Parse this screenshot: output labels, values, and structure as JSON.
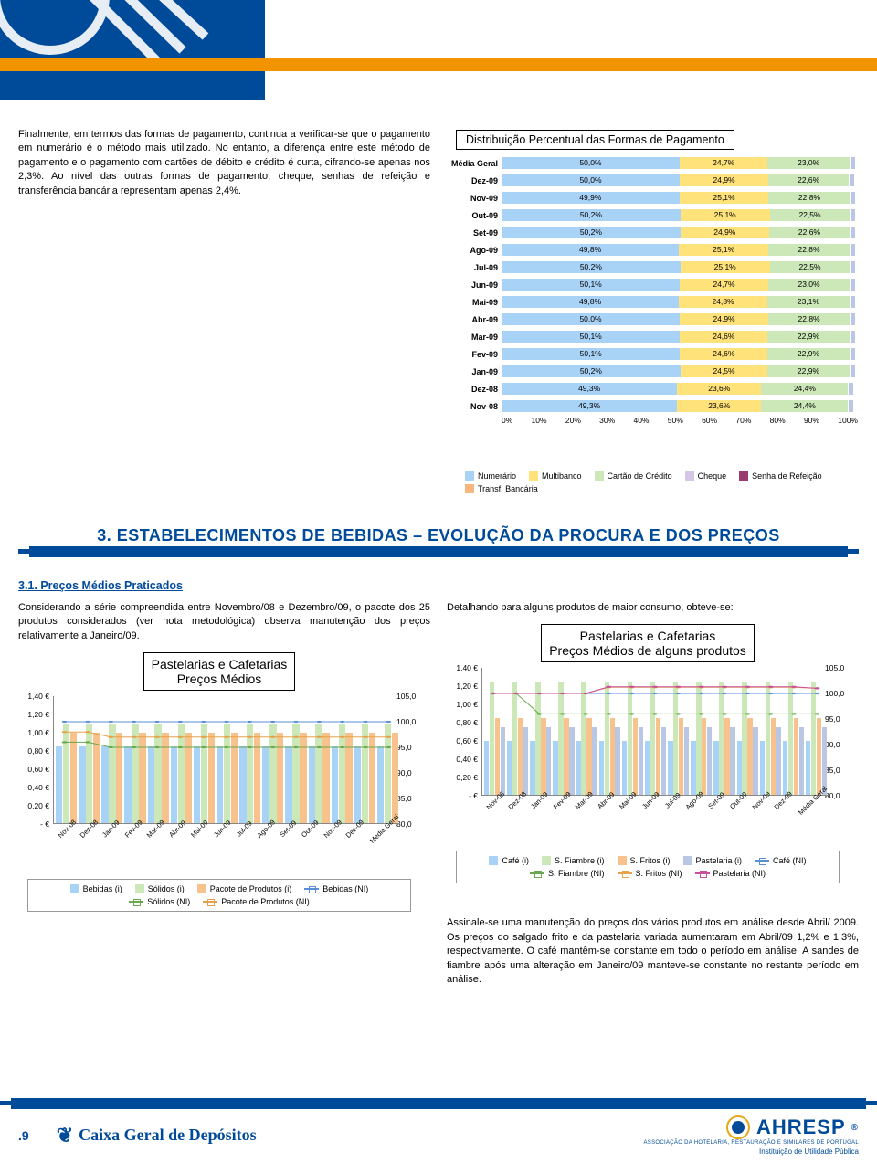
{
  "header": {
    "orange_color": "#f29400",
    "blue_color": "#004a9a"
  },
  "intro": {
    "p1": "Finalmente, em termos das formas de pagamento, continua a verificar-se que o pagamento em numerário é o método mais utilizado. No entanto, a diferença entre este método de pagamento e o pagamento com cartões de débito e crédito é curta, cifrando-se apenas nos 2,3%. Ao nível das outras formas de pagamento, cheque, senhas de refeição e transferência bancária representam apenas 2,4%."
  },
  "hbar_chart": {
    "title": "Distribuição Percentual das Formas de Pagamento",
    "xlim": [
      0,
      100
    ],
    "xticks": [
      "0%",
      "10%",
      "20%",
      "30%",
      "40%",
      "50%",
      "60%",
      "70%",
      "80%",
      "90%",
      "100%"
    ],
    "colors": {
      "c1": "#a9d2f7",
      "c2": "#ffe27a",
      "c3": "#cde8b8",
      "terminal": "#b9c7e4"
    },
    "rows": [
      {
        "label": "Média Geral",
        "v1": "50,0%",
        "v2": "24,7%",
        "v3": "23,0%",
        "n1": 50.0,
        "n2": 24.7,
        "n3": 23.0
      },
      {
        "label": "Dez-09",
        "v1": "50,0%",
        "v2": "24,9%",
        "v3": "22,6%",
        "n1": 50.0,
        "n2": 24.9,
        "n3": 22.6
      },
      {
        "label": "Nov-09",
        "v1": "49,9%",
        "v2": "25,1%",
        "v3": "22,8%",
        "n1": 49.9,
        "n2": 25.1,
        "n3": 22.8
      },
      {
        "label": "Out-09",
        "v1": "50,2%",
        "v2": "25,1%",
        "v3": "22,5%",
        "n1": 50.2,
        "n2": 25.1,
        "n3": 22.5
      },
      {
        "label": "Set-09",
        "v1": "50,2%",
        "v2": "24,9%",
        "v3": "22,6%",
        "n1": 50.2,
        "n2": 24.9,
        "n3": 22.6
      },
      {
        "label": "Ago-09",
        "v1": "49,8%",
        "v2": "25,1%",
        "v3": "22,8%",
        "n1": 49.8,
        "n2": 25.1,
        "n3": 22.8
      },
      {
        "label": "Jul-09",
        "v1": "50,2%",
        "v2": "25,1%",
        "v3": "22,5%",
        "n1": 50.2,
        "n2": 25.1,
        "n3": 22.5
      },
      {
        "label": "Jun-09",
        "v1": "50,1%",
        "v2": "24,7%",
        "v3": "23,0%",
        "n1": 50.1,
        "n2": 24.7,
        "n3": 23.0
      },
      {
        "label": "Mai-09",
        "v1": "49,8%",
        "v2": "24,8%",
        "v3": "23,1%",
        "n1": 49.8,
        "n2": 24.8,
        "n3": 23.1
      },
      {
        "label": "Abr-09",
        "v1": "50,0%",
        "v2": "24,9%",
        "v3": "22,8%",
        "n1": 50.0,
        "n2": 24.9,
        "n3": 22.8
      },
      {
        "label": "Mar-09",
        "v1": "50,1%",
        "v2": "24,6%",
        "v3": "22,9%",
        "n1": 50.1,
        "n2": 24.6,
        "n3": 22.9
      },
      {
        "label": "Fev-09",
        "v1": "50,1%",
        "v2": "24,6%",
        "v3": "22,9%",
        "n1": 50.1,
        "n2": 24.6,
        "n3": 22.9
      },
      {
        "label": "Jan-09",
        "v1": "50,2%",
        "v2": "24,5%",
        "v3": "22,9%",
        "n1": 50.2,
        "n2": 24.5,
        "n3": 22.9
      },
      {
        "label": "Dez-08",
        "v1": "49,3%",
        "v2": "23,6%",
        "v3": "24,4%",
        "n1": 49.3,
        "n2": 23.6,
        "n3": 24.4
      },
      {
        "label": "Nov-08",
        "v1": "49,3%",
        "v2": "23,6%",
        "v3": "24,4%",
        "n1": 49.3,
        "n2": 23.6,
        "n3": 24.4
      }
    ],
    "legend": [
      {
        "label": "Numerário",
        "swatch": "#a9d2f7"
      },
      {
        "label": "Multibanco",
        "swatch": "#ffe27a"
      },
      {
        "label": "Cartão de Crédito",
        "swatch": "#cde8b8"
      },
      {
        "label": "Cheque",
        "swatch": "#d6c6e6"
      },
      {
        "label": "Senha de Refeição",
        "swatch": "#9b3b6f"
      },
      {
        "label": "Transf. Bancária",
        "swatch": "#f7b77e"
      }
    ]
  },
  "section": {
    "title": "3. ESTABELECIMENTOS DE BEBIDAS – EVOLUÇÃO DA PROCURA E DOS PREÇOS",
    "sub": "3.1. Preços Médios Praticados"
  },
  "left_block": {
    "p1": "Considerando a série compreendida entre Novembro/08 e Dezembro/09, o pacote dos 25 produtos considerados (ver nota metodológica) observa manutenção dos preços relativamente a Janeiro/09."
  },
  "right_block": {
    "p1": "Detalhando para alguns produtos de maior consumo, obteve-se:",
    "p2": "Assinale-se uma manutenção do preços dos vários produtos em análise desde Abril/ 2009. Os preços do salgado frito e da pastelaria variada aumentaram em Abril/09 1,2% e 1,3%, respectivamente. O café mantêm-se constante em todo o período em análise. A sandes de fiambre após uma alteração em Janeiro/09 manteve-se constante no restante período em análise."
  },
  "chart_left": {
    "title1": "Pastelarias e Cafetarias",
    "title2": "Preços Médios",
    "categories": [
      "Nov-08",
      "Dez-08",
      "Jan-09",
      "Fev-09",
      "Mar-09",
      "Abr-09",
      "Mai-09",
      "Jun-09",
      "Jul-09",
      "Ago-09",
      "Set-09",
      "Out-09",
      "Nov-09",
      "Dez-09",
      "Média Geral"
    ],
    "y_left": [
      "1,40 €",
      "1,20 €",
      "1,00 €",
      "0,80 €",
      "0,60 €",
      "0,40 €",
      "0,20 €",
      "- €"
    ],
    "y_right": [
      "105,0",
      "100,0",
      "95,0",
      "90,0",
      "85,0",
      "80,0"
    ],
    "ylim_left": [
      0,
      1.4
    ],
    "ylim_right": [
      80,
      105
    ],
    "series_bars": [
      {
        "name": "Bebidas (i)",
        "color": "#a9d2f7",
        "vals": [
          0.85,
          0.85,
          0.85,
          0.85,
          0.85,
          0.85,
          0.85,
          0.85,
          0.85,
          0.85,
          0.85,
          0.85,
          0.85,
          0.85,
          0.85
        ]
      },
      {
        "name": "Sólidos (i)",
        "color": "#cde8b8",
        "vals": [
          1.1,
          1.1,
          1.1,
          1.1,
          1.1,
          1.1,
          1.1,
          1.1,
          1.1,
          1.1,
          1.1,
          1.1,
          1.1,
          1.1,
          1.1
        ]
      },
      {
        "name": "Pacote de Produtos (i)",
        "color": "#f7c28b",
        "vals": [
          1.0,
          1.0,
          1.0,
          1.0,
          1.0,
          1.0,
          1.0,
          1.0,
          1.0,
          1.0,
          1.0,
          1.0,
          1.0,
          1.0,
          1.0
        ]
      }
    ],
    "series_lines": [
      {
        "name": "Bebidas (NI)",
        "color": "#5a8fd6",
        "marker": "x",
        "vals": [
          100,
          100,
          100,
          100,
          100,
          100,
          100,
          100,
          100,
          100,
          100,
          100,
          100,
          100,
          100
        ]
      },
      {
        "name": "Sólidos (NI)",
        "color": "#6aa84f",
        "marker": "x",
        "vals": [
          96,
          96,
          95,
          95,
          95,
          95,
          95,
          95,
          95,
          95,
          95,
          95,
          95,
          95,
          95
        ]
      },
      {
        "name": "Pacote de Produtos (NI)",
        "color": "#e5a24b",
        "marker": "x",
        "vals": [
          98,
          98,
          97,
          97,
          97,
          97,
          97,
          97,
          97,
          97,
          97,
          97,
          97,
          97,
          97
        ]
      }
    ],
    "legend": [
      "Bebidas (i)",
      "Sólidos (i)",
      "Pacote de Produtos (i)",
      "Bebidas (NI)",
      "Sólidos (NI)",
      "Pacote de Produtos (NI)"
    ]
  },
  "chart_right": {
    "title1": "Pastelarias e Cafetarias",
    "title2": "Preços Médios de alguns produtos",
    "categories": [
      "Nov-08",
      "Dez-08",
      "Jan-09",
      "Fev-09",
      "Mar-09",
      "Abr-09",
      "Mai-09",
      "Jun-09",
      "Jul-09",
      "Ago-09",
      "Set-09",
      "Out-09",
      "Nov-09",
      "Dez-09",
      "Média Geral"
    ],
    "y_left": [
      "1,40 €",
      "1,20 €",
      "1,00 €",
      "0,80 €",
      "0,60 €",
      "0,40 €",
      "0,20 €",
      "- €"
    ],
    "y_right": [
      "105,0",
      "100,0",
      "95,0",
      "90,0",
      "85,0",
      "80,0"
    ],
    "ylim_left": [
      0,
      1.4
    ],
    "ylim_right": [
      80,
      105
    ],
    "series_bars": [
      {
        "name": "Café (i)",
        "color": "#a9d2f7",
        "vals": [
          0.6,
          0.6,
          0.6,
          0.6,
          0.6,
          0.6,
          0.6,
          0.6,
          0.6,
          0.6,
          0.6,
          0.6,
          0.6,
          0.6,
          0.6
        ]
      },
      {
        "name": "S. Fiambre (i)",
        "color": "#cde8b8",
        "vals": [
          1.25,
          1.25,
          1.25,
          1.25,
          1.25,
          1.25,
          1.25,
          1.25,
          1.25,
          1.25,
          1.25,
          1.25,
          1.25,
          1.25,
          1.25
        ]
      },
      {
        "name": "S. Fritos (i)",
        "color": "#f7c28b",
        "vals": [
          0.85,
          0.85,
          0.85,
          0.85,
          0.85,
          0.85,
          0.85,
          0.85,
          0.85,
          0.85,
          0.85,
          0.85,
          0.85,
          0.85,
          0.85
        ]
      },
      {
        "name": "Pastelaria (i)",
        "color": "#b9c7e4",
        "vals": [
          0.75,
          0.75,
          0.75,
          0.75,
          0.75,
          0.75,
          0.75,
          0.75,
          0.75,
          0.75,
          0.75,
          0.75,
          0.75,
          0.75,
          0.75
        ]
      }
    ],
    "series_lines": [
      {
        "name": "Café (NI)",
        "color": "#5a8fd6",
        "vals": [
          100,
          100,
          100,
          100,
          100,
          100,
          100,
          100,
          100,
          100,
          100,
          100,
          100,
          100,
          100
        ]
      },
      {
        "name": "S. Fiambre (NI)",
        "color": "#6aa84f",
        "vals": [
          100,
          100,
          96,
          96,
          96,
          96,
          96,
          96,
          96,
          96,
          96,
          96,
          96,
          96,
          96
        ]
      },
      {
        "name": "S. Fritos (NI)",
        "color": "#e5a24b",
        "vals": [
          100,
          100,
          100,
          100,
          100,
          101.2,
          101.2,
          101.2,
          101.2,
          101.2,
          101.2,
          101.2,
          101.2,
          101.2,
          101
        ]
      },
      {
        "name": "Pastelaria (NI)",
        "color": "#c94f9a",
        "vals": [
          100,
          100,
          100,
          100,
          100,
          101.3,
          101.3,
          101.3,
          101.3,
          101.3,
          101.3,
          101.3,
          101.3,
          101.3,
          101
        ]
      }
    ],
    "legend": [
      "Café (i)",
      "S. Fiambre (i)",
      "S. Fritos (i)",
      "Pastelaria (i)",
      "Café (NI)",
      "S. Fiambre (NI)",
      "S. Fritos (NI)",
      "Pastelaria (NI)"
    ]
  },
  "footer": {
    "page": ".9",
    "cgd": "Caixa Geral de Depósitos",
    "ahresp": "AHRESP",
    "ahresp_sub": "ASSOCIAÇÃO DA HOTELARIA, RESTAURAÇÃO E SIMILARES DE PORTUGAL",
    "util": "Instituição de Utilidade Pública"
  }
}
